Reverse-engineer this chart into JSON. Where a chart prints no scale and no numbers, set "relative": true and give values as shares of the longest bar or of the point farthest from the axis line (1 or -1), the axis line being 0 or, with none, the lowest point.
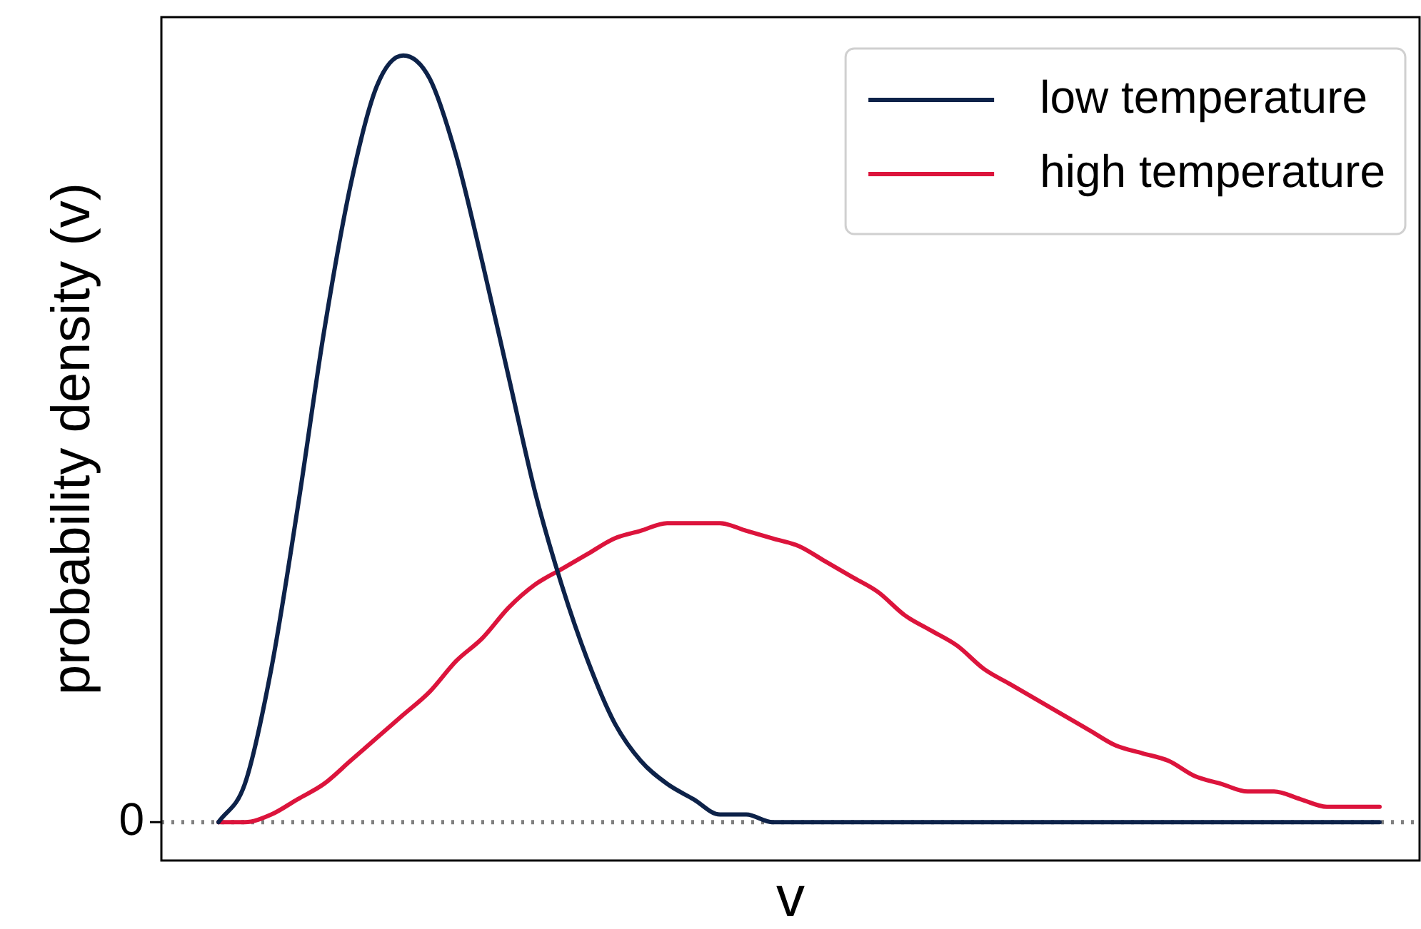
{
  "chart_data": {
    "type": "line",
    "relative": true,
    "xlabel": "v",
    "ylabel": "probability density (v)",
    "legend": "top right",
    "marker": "none",
    "line_style": "solid",
    "categories": [
      null,
      null,
      null,
      null,
      null,
      null,
      null,
      null,
      null,
      null,
      null,
      null,
      null,
      null,
      null,
      null,
      null,
      null,
      null,
      null,
      null,
      null,
      null,
      null,
      null,
      null,
      null,
      null,
      null,
      null,
      null,
      null,
      null,
      null,
      null,
      null,
      null,
      null,
      null,
      null,
      null,
      null,
      null,
      null,
      null
    ],
    "ref_lines": [
      {
        "axis": "y",
        "value": 0,
        "label": "0",
        "color": "#808080",
        "line_style": "dotted"
      }
    ],
    "series": [
      {
        "name": "low temperature",
        "color": "#0d2249",
        "values": [
          0,
          0.05,
          0.2,
          0.41,
          0.64,
          0.83,
          0.96,
          1,
          0.97,
          0.87,
          0.73,
          0.58,
          0.43,
          0.31,
          0.21,
          0.13,
          0.08,
          0.05,
          0.03,
          0.01,
          0.01,
          0,
          0,
          0,
          0,
          0,
          0,
          0,
          0,
          0,
          0,
          0,
          0,
          0,
          0,
          0,
          0,
          0,
          0,
          0,
          0,
          0,
          0,
          0,
          0
        ]
      },
      {
        "name": "high temperature",
        "color": "#dc143c",
        "values": [
          0,
          0,
          0.01,
          0.03,
          0.05,
          0.08,
          0.11,
          0.14,
          0.17,
          0.21,
          0.24,
          0.28,
          0.31,
          0.33,
          0.35,
          0.37,
          0.38,
          0.39,
          0.39,
          0.39,
          0.38,
          0.37,
          0.36,
          0.34,
          0.32,
          0.3,
          0.27,
          0.25,
          0.23,
          0.2,
          0.18,
          0.16,
          0.14,
          0.12,
          0.1,
          0.09,
          0.08,
          0.06,
          0.05,
          0.04,
          0.04,
          0.03,
          0.02,
          0.02,
          0.02
        ]
      }
    ]
  }
}
